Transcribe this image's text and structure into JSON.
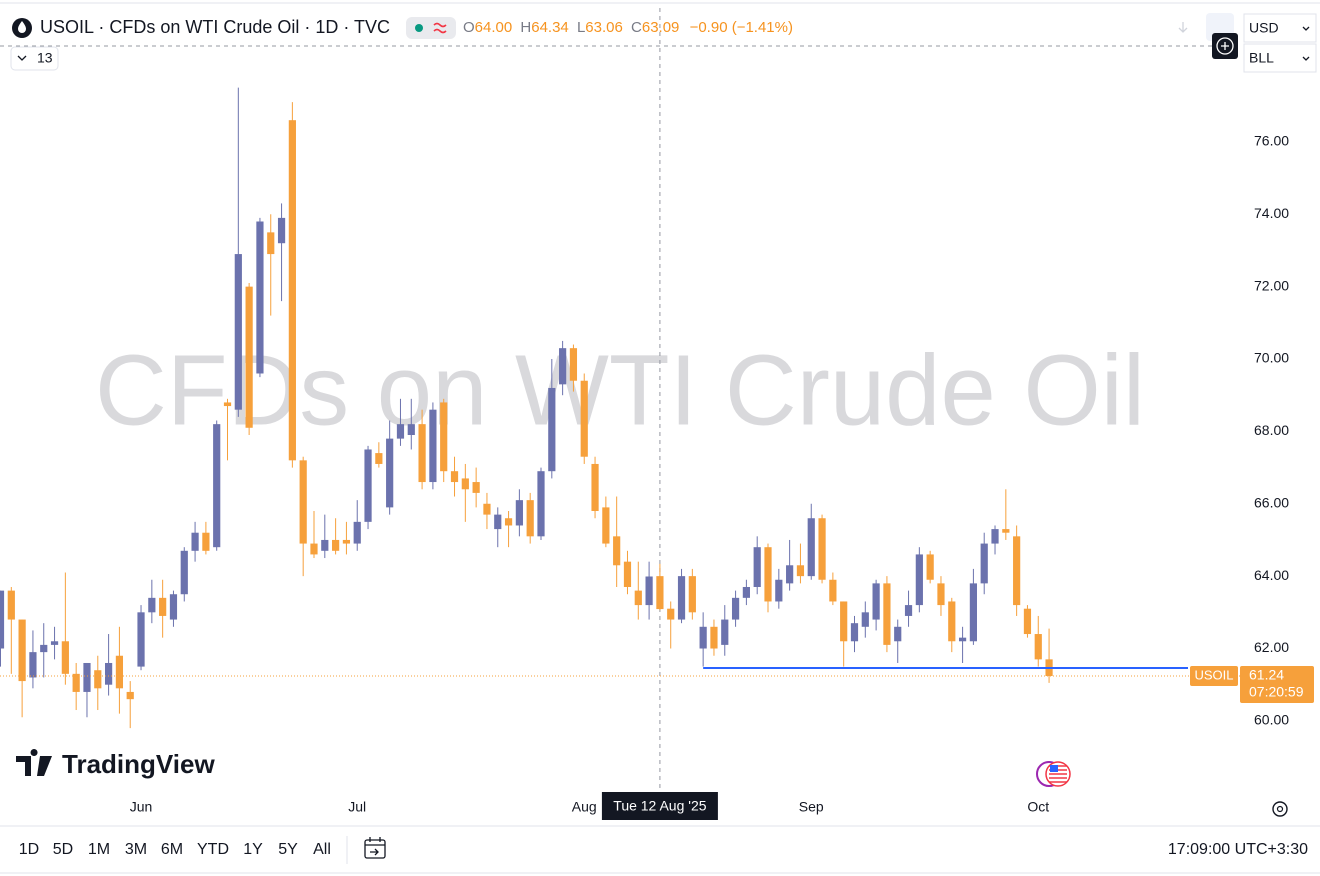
{
  "header": "USOIL · CFDs on WTI Crude Oil · 1D · TVC",
  "legend": [
    {
      "key": "O",
      "value": "64.00"
    },
    {
      "key": "H",
      "value": "64.34"
    },
    {
      "key": "L",
      "value": "63.06"
    },
    {
      "key": "C",
      "value": "63.09"
    }
  ],
  "change": "−0.90 (−1.41%)",
  "indicators": 13,
  "currency": "USD",
  "unit": "BLL",
  "logo": "TradingView",
  "ranges": [
    "1D",
    "5D",
    "1M",
    "3M",
    "6M",
    "YTD",
    "1Y",
    "5Y",
    "All"
  ],
  "clock": "17:09:00 UTC+3:30",
  "chart_data": {
    "type": "candlestick",
    "title": "CFDs on WTI Crude Oil",
    "categories": [
      null,
      null,
      null,
      null,
      null,
      null,
      null,
      null,
      null,
      null,
      null,
      null,
      null,
      "Jun",
      null,
      null,
      null,
      null,
      null,
      null,
      null,
      null,
      null,
      null,
      null,
      null,
      null,
      null,
      null,
      null,
      null,
      null,
      null,
      "Jul",
      null,
      null,
      null,
      null,
      null,
      null,
      null,
      null,
      null,
      null,
      null,
      null,
      null,
      null,
      null,
      null,
      null,
      null,
      null,
      null,
      "Aug",
      null,
      null,
      null,
      null,
      null,
      null,
      null,
      null,
      null,
      null,
      null,
      null,
      null,
      null,
      null,
      null,
      null,
      null,
      null,
      null,
      "Sep",
      null,
      null,
      null,
      null,
      null,
      null,
      null,
      null,
      null,
      null,
      null,
      null,
      null,
      null,
      null,
      null,
      null,
      null,
      null,
      null,
      "Oct",
      null
    ],
    "open": [
      62.0,
      63.6,
      62.8,
      61.2,
      61.9,
      62.1,
      62.2,
      61.3,
      60.8,
      61.4,
      61.0,
      61.8,
      60.8,
      61.5,
      63.0,
      63.4,
      62.8,
      63.5,
      64.7,
      65.2,
      64.8,
      68.8,
      68.6,
      72.0,
      69.6,
      73.5,
      73.2,
      76.6,
      67.2,
      64.9,
      64.7,
      65.0,
      65.0,
      64.9,
      65.5,
      67.4,
      65.9,
      67.8,
      67.9,
      68.2,
      66.6,
      68.8,
      66.9,
      66.7,
      66.6,
      66.0,
      65.3,
      65.6,
      65.4,
      66.1,
      65.1,
      66.9,
      69.3,
      70.3,
      69.4,
      67.1,
      65.9,
      65.1,
      64.4,
      63.6,
      63.2,
      64.0,
      63.1,
      62.8,
      64.0,
      62.0,
      62.6,
      62.1,
      62.8,
      63.4,
      63.7,
      64.8,
      63.3,
      63.8,
      64.3,
      64.0,
      65.6,
      63.9,
      63.3,
      62.2,
      62.6,
      62.8,
      63.8,
      62.2,
      62.9,
      63.2,
      64.6,
      63.8,
      63.3,
      62.2,
      62.2,
      63.8,
      64.9,
      65.3,
      65.1,
      63.1,
      62.4,
      61.7
    ],
    "high": [
      63.6,
      63.7,
      62.8,
      62.5,
      62.7,
      62.6,
      64.1,
      61.6,
      61.6,
      61.8,
      62.4,
      62.6,
      61.1,
      63.2,
      63.9,
      63.9,
      63.6,
      64.8,
      65.5,
      65.5,
      68.3,
      68.9,
      77.5,
      72.1,
      73.9,
      74.0,
      74.3,
      77.1,
      67.3,
      65.8,
      65.7,
      65.6,
      65.5,
      66.1,
      67.6,
      67.7,
      68.3,
      68.9,
      68.9,
      68.6,
      68.8,
      68.9,
      67.3,
      67.1,
      67.0,
      66.3,
      65.9,
      65.8,
      66.4,
      66.3,
      67.0,
      70.0,
      70.5,
      70.4,
      69.6,
      67.3,
      66.2,
      66.2,
      64.7,
      64.4,
      64.4,
      64.34,
      63.3,
      64.2,
      64.2,
      63.0,
      62.8,
      63.2,
      63.6,
      63.9,
      65.1,
      64.9,
      64.2,
      65.0,
      64.9,
      66.0,
      65.7,
      64.1,
      63.3,
      62.9,
      63.3,
      63.9,
      64.0,
      62.8,
      63.6,
      64.8,
      64.7,
      64.0,
      63.4,
      62.6,
      64.2,
      65.2,
      65.4,
      66.4,
      65.4,
      63.2,
      62.9,
      62.55
    ],
    "low": [
      61.5,
      61.3,
      60.1,
      60.9,
      61.2,
      61.7,
      61.0,
      60.3,
      60.1,
      60.3,
      60.7,
      60.2,
      59.8,
      61.4,
      62.7,
      62.3,
      62.6,
      63.3,
      64.4,
      64.6,
      64.7,
      67.2,
      68.4,
      67.9,
      69.5,
      71.2,
      71.6,
      67.0,
      64.0,
      64.5,
      64.5,
      64.6,
      64.6,
      64.7,
      65.3,
      67.0,
      65.7,
      67.6,
      67.5,
      66.4,
      66.4,
      66.6,
      66.2,
      65.5,
      65.9,
      65.3,
      64.8,
      64.8,
      65.1,
      64.9,
      65.0,
      66.7,
      69.0,
      69.1,
      67.1,
      65.6,
      64.8,
      63.7,
      63.5,
      62.8,
      62.8,
      63.06,
      62.0,
      62.7,
      62.8,
      61.5,
      61.8,
      61.8,
      62.6,
      63.2,
      63.5,
      63.0,
      63.1,
      63.6,
      63.8,
      63.9,
      63.8,
      63.2,
      61.5,
      61.9,
      62.3,
      62.5,
      61.9,
      61.6,
      62.6,
      63.0,
      63.8,
      62.9,
      61.9,
      61.6,
      62.1,
      63.5,
      64.6,
      65.0,
      62.9,
      62.3,
      61.5,
      61.05
    ],
    "close": [
      63.6,
      62.8,
      61.1,
      61.9,
      62.1,
      62.2,
      61.3,
      60.8,
      61.6,
      60.9,
      61.6,
      60.9,
      60.6,
      63.0,
      63.4,
      62.9,
      63.5,
      64.7,
      65.2,
      64.7,
      68.2,
      68.7,
      72.9,
      68.1,
      73.8,
      72.9,
      73.9,
      67.2,
      64.9,
      64.6,
      65.0,
      64.7,
      64.9,
      65.5,
      67.5,
      67.1,
      67.8,
      68.2,
      68.2,
      66.6,
      68.6,
      66.9,
      66.6,
      66.4,
      66.3,
      65.7,
      65.7,
      65.4,
      66.1,
      65.1,
      66.9,
      69.2,
      70.3,
      69.4,
      67.3,
      65.8,
      64.9,
      64.3,
      63.7,
      63.2,
      63.99,
      63.09,
      62.8,
      64.0,
      63.0,
      62.6,
      62.0,
      62.8,
      63.4,
      63.7,
      64.8,
      63.3,
      63.9,
      64.3,
      64.0,
      65.6,
      63.9,
      63.3,
      62.2,
      62.7,
      63.0,
      63.8,
      62.1,
      62.6,
      63.2,
      64.6,
      63.9,
      63.2,
      62.2,
      62.3,
      63.8,
      64.9,
      65.3,
      65.2,
      63.2,
      62.4,
      61.7,
      61.24
    ],
    "up_color": "#6b72ad",
    "down_color": "#f6a03b",
    "ylim": [
      58.09,
      79.7
    ],
    "yticks": [
      {
        "value": 60,
        "label": "60.00"
      },
      {
        "value": 62,
        "label": "62.00"
      },
      {
        "value": 64,
        "label": "64.00"
      },
      {
        "value": 66,
        "label": "66.00"
      },
      {
        "value": 68,
        "label": "68.00"
      },
      {
        "value": 70,
        "label": "70.00"
      },
      {
        "value": 72,
        "label": "72.00"
      },
      {
        "value": 74,
        "label": "74.00"
      },
      {
        "value": 76,
        "label": "76.00"
      }
    ],
    "hline": {
      "value": 61.46,
      "color": "#2962ff"
    },
    "price_tag": "USOIL",
    "countdown": "07:20:59",
    "crosshair": {
      "x": 61,
      "label": "Tue 12 Aug '25"
    }
  }
}
